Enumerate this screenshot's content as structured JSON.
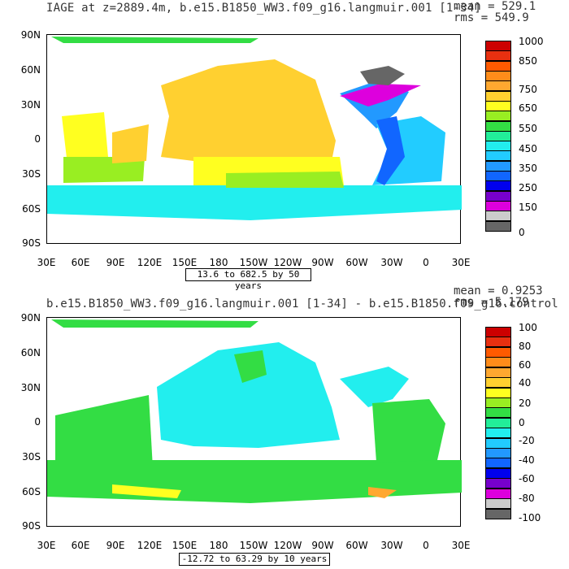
{
  "top_panel": {
    "title": "IAGE at z=2889.4m, b.e15.B1850_WW3.f09_g16.langmuir.001  [1-34]",
    "mean_label": "mean = 529.1",
    "rms_label": "rms = 549.9",
    "range_label": "13.6 to 682.5 by 50 years",
    "colorbar_labels": [
      "1000",
      "850",
      "750",
      "650",
      "550",
      "450",
      "350",
      "250",
      "150",
      "0"
    ],
    "colorbar_colors": [
      "#cc0000",
      "#e83010",
      "#ff5a00",
      "#ff8c1a",
      "#ffa830",
      "#ffd030",
      "#ffff20",
      "#99ee22",
      "#33dd44",
      "#22ee99",
      "#22eeee",
      "#22ccff",
      "#2299ff",
      "#1166ff",
      "#0000ee",
      "#7700cc",
      "#dd00dd",
      "#cccccc",
      "#666666"
    ]
  },
  "bottom_panel": {
    "title": "b.e15.B1850_WW3.f09_g16.langmuir.001  [1-34] - b.e15.B1850.f09_g16.control",
    "mean_label": "mean = 0.9253",
    "rms_label": "rms = 5.179",
    "range_label": "-12.72 to 63.29 by 10 years",
    "colorbar_labels": [
      "100",
      "80",
      "60",
      "40",
      "20",
      "0",
      "-20",
      "-40",
      "-60",
      "-80",
      "-100"
    ],
    "colorbar_colors": [
      "#cc0000",
      "#e83010",
      "#ff5a00",
      "#ff8c1a",
      "#ffa830",
      "#ffd030",
      "#ffff20",
      "#99ee22",
      "#33dd44",
      "#22ee99",
      "#22eeee",
      "#22ccff",
      "#2299ff",
      "#1166ff",
      "#0000ee",
      "#7700cc",
      "#dd00dd",
      "#cccccc",
      "#666666"
    ]
  },
  "lat_labels": [
    "90N",
    "60N",
    "30N",
    "0",
    "30S",
    "60S",
    "90S"
  ],
  "lon_labels": [
    "30E",
    "60E",
    "90E",
    "120E",
    "150E",
    "180",
    "150W",
    "120W",
    "90W",
    "60W",
    "30W",
    "0",
    "30E"
  ]
}
